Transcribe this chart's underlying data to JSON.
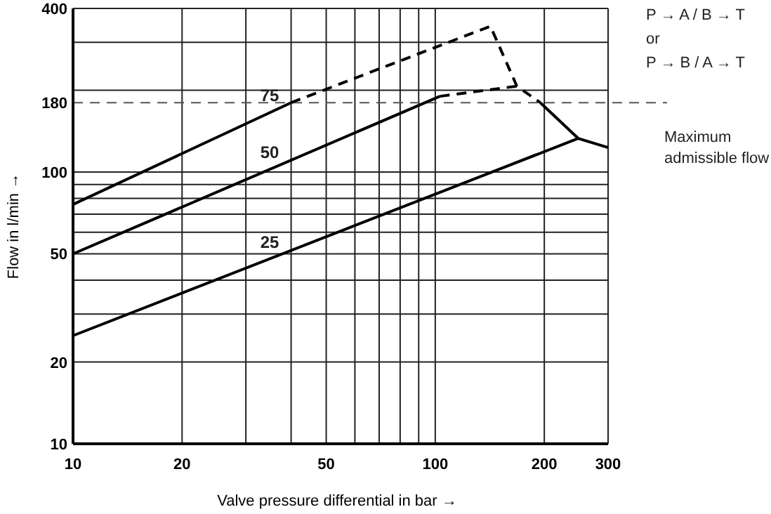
{
  "chart_data": {
    "type": "line",
    "xlabel": "Valve pressure differential in bar →",
    "ylabel": "Flow in l/min →",
    "log": "xy",
    "grid": true,
    "marker": "none",
    "xlim": [
      10,
      300
    ],
    "ylim": [
      10,
      400
    ],
    "xticks": [
      10,
      20,
      {
        "value": 30,
        "label": null
      },
      {
        "value": 40,
        "label": null
      },
      50,
      {
        "value": 60,
        "label": null
      },
      {
        "value": 70,
        "label": null
      },
      {
        "value": 80,
        "label": null
      },
      {
        "value": 90,
        "label": null
      },
      100,
      200,
      300
    ],
    "yticks": [
      10,
      20,
      {
        "value": 30,
        "label": null
      },
      {
        "value": 40,
        "label": null
      },
      50,
      {
        "value": 60,
        "label": null
      },
      {
        "value": 70,
        "label": null
      },
      {
        "value": 80,
        "label": null
      },
      {
        "value": 90,
        "label": null
      },
      100,
      180,
      {
        "value": 200,
        "label": null
      },
      {
        "value": 300,
        "label": null
      },
      400
    ],
    "series": [
      {
        "name": "75",
        "color": "#000000",
        "line_style": "solid",
        "x": [
          10,
          40
        ],
        "values": [
          76,
          180
        ]
      },
      {
        "color": "#000000",
        "line_style": "dashed",
        "x": [
          40,
          142,
          168,
          195
        ],
        "values": [
          180,
          344,
          207,
          180
        ]
      },
      {
        "name": "50",
        "color": "#000000",
        "line_style": "solid",
        "x": [
          10,
          103
        ],
        "values": [
          50,
          190
        ]
      },
      {
        "color": "#000000",
        "line_style": "dashed",
        "x": [
          103,
          168
        ],
        "values": [
          190,
          207
        ]
      },
      {
        "name": "25",
        "color": "#000000",
        "line_style": "solid",
        "x": [
          10,
          248
        ],
        "values": [
          25,
          133
        ]
      },
      {
        "color": "#000000",
        "line_style": "solid",
        "x": [
          195,
          248,
          300
        ],
        "values": [
          180,
          133,
          123
        ]
      }
    ],
    "ref_lines": [
      {
        "axis": "y",
        "value": 180,
        "label": "Maximum admissible flow",
        "color": "#555555",
        "line_style": "dashed"
      }
    ],
    "annotations": [
      "P → A / B → T",
      "or",
      "P → B / A → T"
    ]
  }
}
